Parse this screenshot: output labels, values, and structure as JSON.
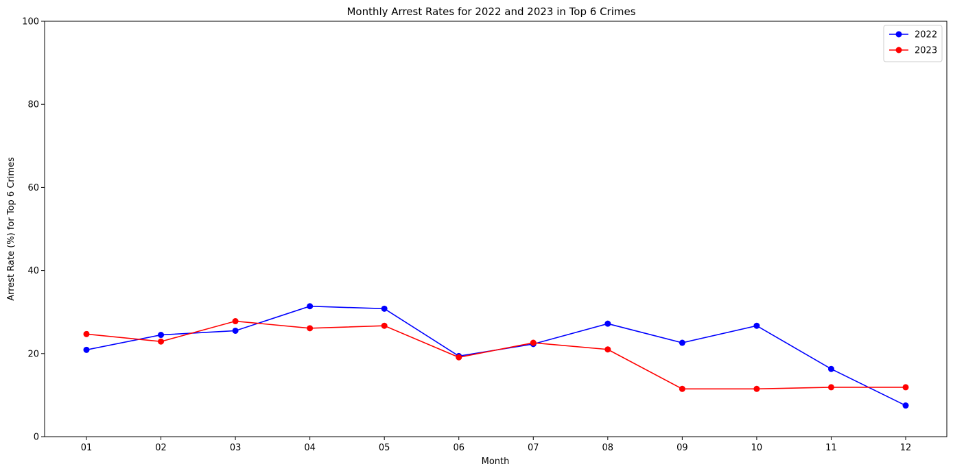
{
  "chart_data": {
    "type": "line",
    "title": "Monthly Arrest Rates for 2022 and 2023 in Top 6 Crimes",
    "xlabel": "Month",
    "ylabel": "Arrest Rate (%) for Top 6 Crimes",
    "categories": [
      "01",
      "02",
      "03",
      "04",
      "05",
      "06",
      "07",
      "08",
      "09",
      "10",
      "11",
      "12"
    ],
    "ylim": [
      0,
      100
    ],
    "yticks": [
      "0",
      "20",
      "40",
      "60",
      "80",
      "100"
    ],
    "grid": false,
    "legend_position": "top-right",
    "series": [
      {
        "name": "2022",
        "color": "#0000ff",
        "marker": "circle",
        "values": [
          20.9,
          24.5,
          25.5,
          31.4,
          30.8,
          19.4,
          22.3,
          27.2,
          22.6,
          26.7,
          16.3,
          7.5
        ]
      },
      {
        "name": "2023",
        "color": "#ff0000",
        "marker": "circle",
        "values": [
          24.7,
          22.9,
          27.8,
          26.1,
          26.7,
          19.1,
          22.6,
          21.0,
          11.5,
          11.5,
          11.9,
          11.9
        ]
      }
    ]
  }
}
